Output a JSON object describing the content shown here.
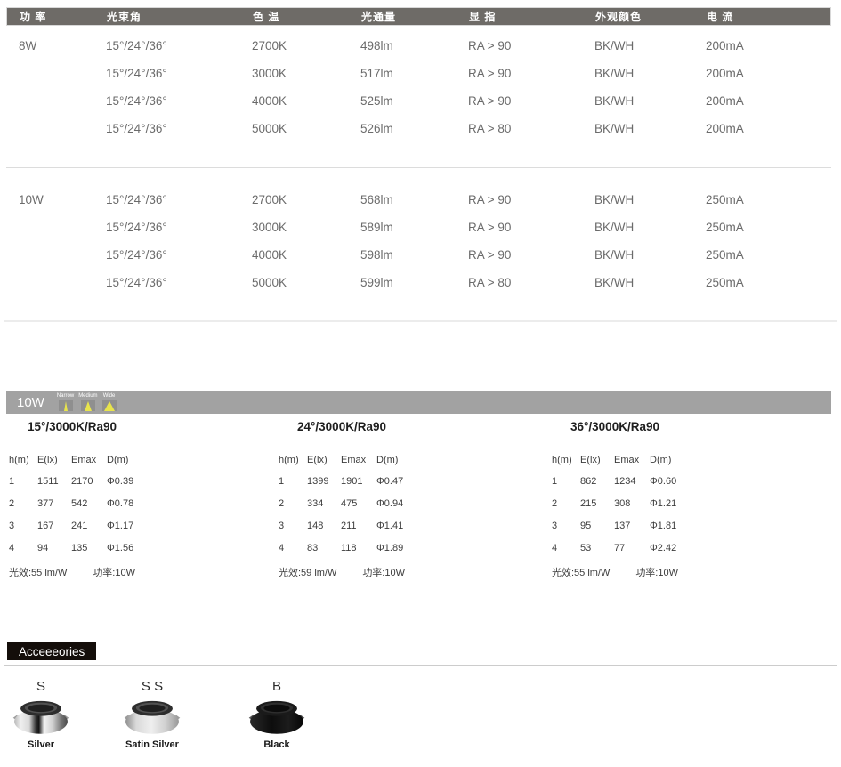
{
  "spec_table": {
    "headers": [
      "功 率",
      "光束角",
      "色 温",
      "光通量",
      "显 指",
      "外观颜色",
      "电 流"
    ],
    "groups": [
      {
        "power": "8W",
        "rows": [
          {
            "beam": "15°/24°/36°",
            "cct": "2700K",
            "flux": "498lm",
            "cri": "RA > 90",
            "finish": "BK/WH",
            "current": "200mA"
          },
          {
            "beam": "15°/24°/36°",
            "cct": "3000K",
            "flux": "517lm",
            "cri": "RA > 90",
            "finish": "BK/WH",
            "current": "200mA"
          },
          {
            "beam": "15°/24°/36°",
            "cct": "4000K",
            "flux": "525lm",
            "cri": "RA > 90",
            "finish": "BK/WH",
            "current": "200mA"
          },
          {
            "beam": "15°/24°/36°",
            "cct": "5000K",
            "flux": "526lm",
            "cri": "RA > 80",
            "finish": "BK/WH",
            "current": "200mA"
          }
        ]
      },
      {
        "power": "10W",
        "rows": [
          {
            "beam": "15°/24°/36°",
            "cct": "2700K",
            "flux": "568lm",
            "cri": "RA > 90",
            "finish": "BK/WH",
            "current": "250mA"
          },
          {
            "beam": "15°/24°/36°",
            "cct": "3000K",
            "flux": "589lm",
            "cri": "RA > 90",
            "finish": "BK/WH",
            "current": "250mA"
          },
          {
            "beam": "15°/24°/36°",
            "cct": "4000K",
            "flux": "598lm",
            "cri": "RA > 90",
            "finish": "BK/WH",
            "current": "250mA"
          },
          {
            "beam": "15°/24°/36°",
            "cct": "5000K",
            "flux": "599lm",
            "cri": "RA > 80",
            "finish": "BK/WH",
            "current": "250mA"
          }
        ]
      }
    ]
  },
  "photometry": {
    "bar_label": "10W",
    "beams": [
      {
        "label": "Narrow",
        "icon": "narrow-beam-icon"
      },
      {
        "label": "Medium",
        "icon": "medium-beam-icon"
      },
      {
        "label": "Wide",
        "icon": "wide-beam-icon"
      }
    ],
    "tables": [
      {
        "title": "15°/3000K/Ra90",
        "headers": [
          "h(m)",
          "E(lx)",
          "Emax",
          "D(m)"
        ],
        "rows": [
          [
            "1",
            "1511",
            "2170",
            "Φ0.39"
          ],
          [
            "2",
            "377",
            "542",
            "Φ0.78"
          ],
          [
            "3",
            "167",
            "241",
            "Φ1.17"
          ],
          [
            "4",
            "94",
            "135",
            "Φ1.56"
          ]
        ],
        "efficacy": "光效:55 lm/W",
        "power": "功率:10W"
      },
      {
        "title": "24°/3000K/Ra90",
        "headers": [
          "h(m)",
          "E(lx)",
          "Emax",
          "D(m)"
        ],
        "rows": [
          [
            "1",
            "1399",
            "1901",
            "Φ0.47"
          ],
          [
            "2",
            "334",
            "475",
            "Φ0.94"
          ],
          [
            "3",
            "148",
            "211",
            "Φ1.41"
          ],
          [
            "4",
            "83",
            "118",
            "Φ1.89"
          ]
        ],
        "efficacy": "光效:59 lm/W",
        "power": "功率:10W"
      },
      {
        "title": "36°/3000K/Ra90",
        "headers": [
          "h(m)",
          "E(lx)",
          "Emax",
          "D(m)"
        ],
        "rows": [
          [
            "1",
            "862",
            "1234",
            "Φ0.60"
          ],
          [
            "2",
            "215",
            "308",
            "Φ1.21"
          ],
          [
            "3",
            "95",
            "137",
            "Φ1.81"
          ],
          [
            "4",
            "53",
            "77",
            "Φ2.42"
          ]
        ],
        "efficacy": "光效:55 lm/W",
        "power": "功率:10W"
      }
    ]
  },
  "accessories": {
    "title": "Acceeeories",
    "items": [
      {
        "code": "S",
        "label": "Silver",
        "variant": "silver"
      },
      {
        "code": "S S",
        "label": "Satin Silver",
        "variant": "satin"
      },
      {
        "code": "B",
        "label": "Black",
        "variant": "black"
      }
    ]
  },
  "colors": {
    "header_bar": "#6e6b67",
    "photo_bar": "#a2a2a2",
    "beam_yellow": "#e8e44c",
    "badge_black": "#140e0a",
    "body_text": "#6b6b6b"
  }
}
